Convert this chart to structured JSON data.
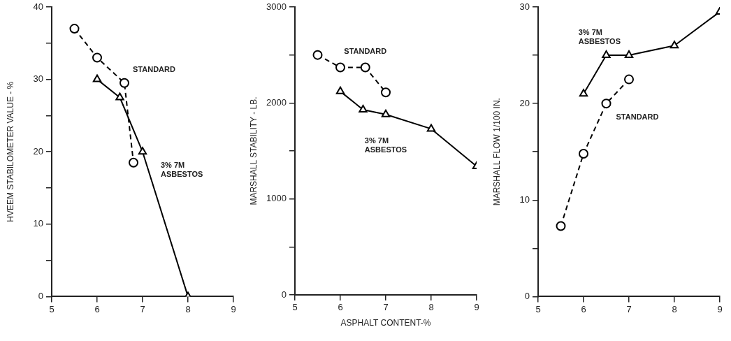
{
  "chart_data": [
    {
      "type": "line",
      "ylabel": "HVEEM STABILOMETER VALUE - %",
      "xlim": [
        5,
        9
      ],
      "xticks": [
        5,
        6,
        7,
        8,
        9
      ],
      "ylim": [
        0,
        40
      ],
      "yticks": [
        0,
        {
          "value": 5,
          "label": null
        },
        10,
        {
          "value": 15,
          "label": null
        },
        20,
        {
          "value": 25,
          "label": null
        },
        30,
        {
          "value": 35,
          "label": null
        },
        40
      ],
      "grid": false,
      "legend": false,
      "series": [
        {
          "name": "STANDARD",
          "color": "#000000",
          "marker": "circle",
          "line_style": "dashed",
          "x": [
            5.5,
            6,
            6.6,
            6.8
          ],
          "values": [
            37,
            33,
            29.5,
            18.5
          ]
        },
        {
          "name": "3% 7M ASBESTOS",
          "color": "#000000",
          "marker": "triangle",
          "line_style": "solid",
          "x": [
            6,
            6.5,
            7,
            8
          ],
          "values": [
            30,
            27.5,
            20,
            0
          ]
        }
      ]
    },
    {
      "type": "line",
      "ylabel": "MARSHALL STABILITY - LB.",
      "xlabel": "ASPHALT CONTENT-%",
      "xlim": [
        5,
        9
      ],
      "xticks": [
        5,
        6,
        7,
        8,
        9
      ],
      "ylim": [
        0,
        3000
      ],
      "yticks": [
        0,
        {
          "value": 500,
          "label": null
        },
        1000,
        {
          "value": 1500,
          "label": null
        },
        2000,
        {
          "value": 2500,
          "label": null
        },
        3000
      ],
      "grid": false,
      "legend": false,
      "series": [
        {
          "name": "STANDARD",
          "color": "#000000",
          "marker": "circle",
          "line_style": "dashed",
          "x": [
            5.5,
            6,
            6.55,
            7
          ],
          "values": [
            2500,
            2370,
            2370,
            2110
          ]
        },
        {
          "name": "3% 7M ASBESTOS",
          "color": "#000000",
          "marker": "triangle",
          "line_style": "solid",
          "x": [
            6,
            6.5,
            7,
            8,
            9
          ],
          "values": [
            2120,
            1930,
            1880,
            1730,
            1340
          ]
        }
      ]
    },
    {
      "type": "line",
      "ylabel": "MARSHALL FLOW 1/100 IN.",
      "xlim": [
        5,
        9
      ],
      "xticks": [
        5,
        6,
        7,
        8,
        9
      ],
      "ylim": [
        0,
        30
      ],
      "yticks": [
        0,
        {
          "value": 5,
          "label": null
        },
        10,
        {
          "value": 15,
          "label": null
        },
        20,
        {
          "value": 25,
          "label": null
        },
        30
      ],
      "grid": false,
      "legend": false,
      "series": [
        {
          "name": "STANDARD",
          "color": "#000000",
          "marker": "circle",
          "line_style": "dashed",
          "x": [
            5.5,
            6,
            6.5,
            7
          ],
          "values": [
            7.3,
            14.8,
            20,
            22.5
          ]
        },
        {
          "name": "3% 7M ASBESTOS",
          "color": "#000000",
          "marker": "triangle",
          "line_style": "solid",
          "x": [
            6,
            6.5,
            7,
            8,
            9
          ],
          "values": [
            21,
            25,
            25,
            26,
            29.5
          ]
        }
      ]
    }
  ]
}
